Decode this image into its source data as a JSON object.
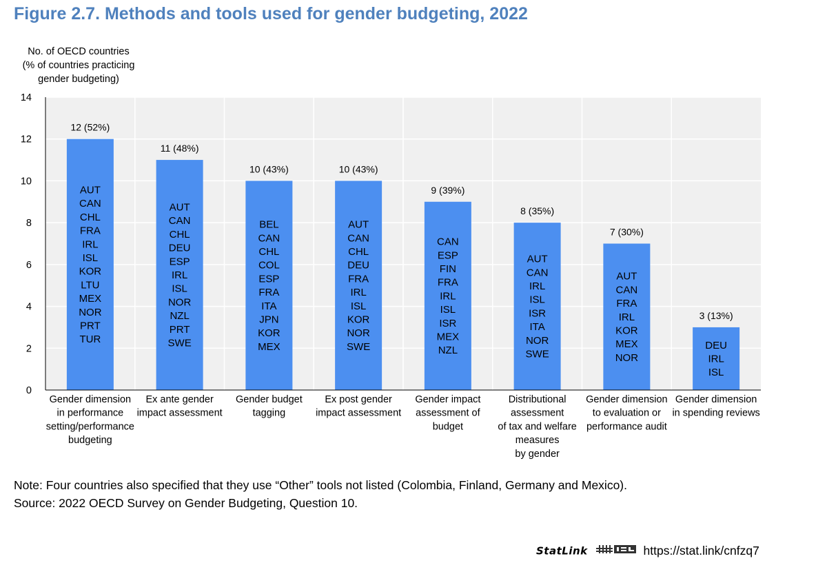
{
  "figure": {
    "title": "Figure 2.7. Methods and tools used for gender budgeting, 2022",
    "note": "Note: Four countries also specified that they use “Other” tools not listed (Colombia, Finland, Germany and Mexico).",
    "source": "Source: 2022 OECD Survey on Gender Budgeting, Question 10.",
    "statlink_label": "StatLink",
    "statlink_url": "https://stat.link/cnfzq7"
  },
  "colors": {
    "bar": "#4c8ff0",
    "plot_bg": "#f0f0f0",
    "grid": "#ffffff",
    "title": "#4f81bd"
  },
  "chart_data": {
    "type": "bar",
    "title": "Figure 2.7. Methods and tools used for gender budgeting, 2022",
    "ylabel_lines": [
      "No. of OECD countries",
      "(% of countries practicing",
      "gender budgeting)"
    ],
    "xlabel": "",
    "ylim": [
      0,
      14
    ],
    "yticks": [
      0,
      2,
      4,
      6,
      8,
      10,
      12,
      14
    ],
    "grid": true,
    "legend": "none",
    "categories": [
      [
        "Gender dimension",
        "in performance",
        "setting/performance",
        "budgeting"
      ],
      [
        "Ex ante gender",
        "impact assessment"
      ],
      [
        "Gender budget",
        "tagging"
      ],
      [
        "Ex post gender",
        "impact assessment"
      ],
      [
        "Gender impact",
        "assessment of",
        "budget"
      ],
      [
        "Distributional",
        "assessment",
        "of tax and welfare",
        "measures",
        "by gender"
      ],
      [
        "Gender dimension",
        "to evaluation or",
        "performance audit"
      ],
      [
        "Gender dimension",
        "in spending reviews"
      ]
    ],
    "values": [
      12,
      11,
      10,
      10,
      9,
      8,
      7,
      3
    ],
    "data_labels": [
      "12 (52%)",
      "11 (48%)",
      "10 (43%)",
      "10 (43%)",
      "9 (39%)",
      "8 (35%)",
      "7 (30%)",
      "3 (13%)"
    ],
    "countries": [
      [
        "AUT",
        "CAN",
        "CHL",
        "FRA",
        "IRL",
        "ISL",
        "KOR",
        "LTU",
        "MEX",
        "NOR",
        "PRT",
        "TUR"
      ],
      [
        "AUT",
        "CAN",
        "CHL",
        "DEU",
        "ESP",
        "IRL",
        "ISL",
        "NOR",
        "NZL",
        "PRT",
        "SWE"
      ],
      [
        "BEL",
        "CAN",
        "CHL",
        "COL",
        "ESP",
        "FRA",
        "ITA",
        "JPN",
        "KOR",
        "MEX"
      ],
      [
        "AUT",
        "CAN",
        "CHL",
        "DEU",
        "FRA",
        "IRL",
        "ISL",
        "KOR",
        "NOR",
        "SWE"
      ],
      [
        "CAN",
        "ESP",
        "FIN",
        "FRA",
        "IRL",
        "ISL",
        "ISR",
        "MEX",
        "NZL"
      ],
      [
        "AUT",
        "CAN",
        "IRL",
        "ISL",
        "ISR",
        "ITA",
        "NOR",
        "SWE"
      ],
      [
        "AUT",
        "CAN",
        "FRA",
        "IRL",
        "KOR",
        "MEX",
        "NOR"
      ],
      [
        "DEU",
        "IRL",
        "ISL"
      ]
    ]
  }
}
